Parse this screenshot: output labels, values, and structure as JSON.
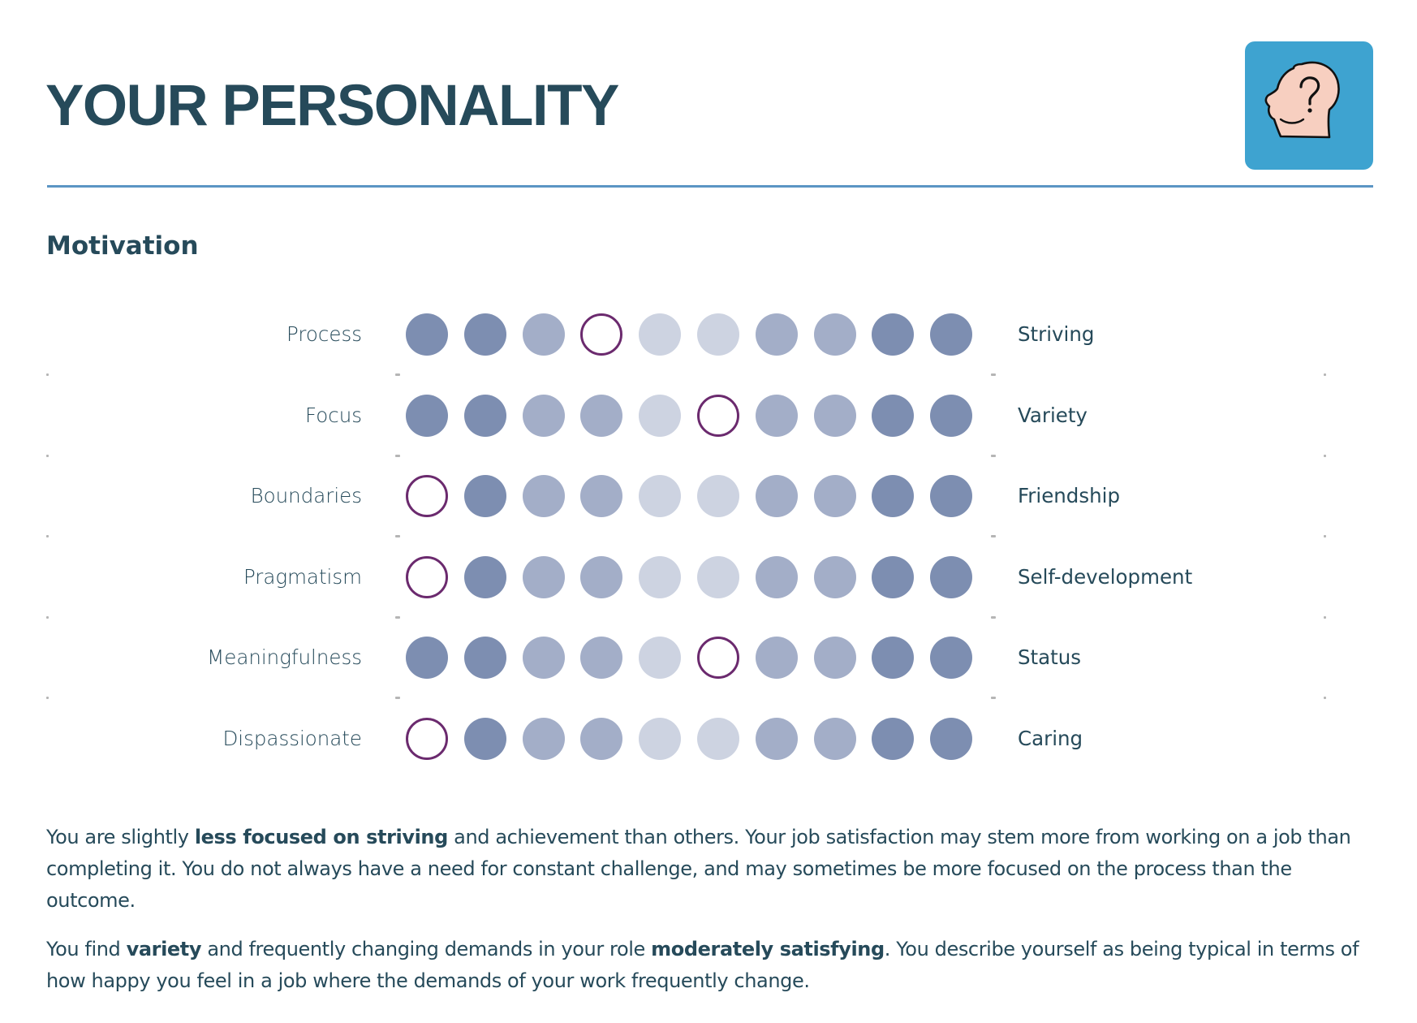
{
  "header": {
    "title": "YOUR PERSONALITY",
    "icon": "head-question-icon",
    "icon_bg": "#3ea3d0"
  },
  "section": {
    "title": "Motivation"
  },
  "scale": {
    "points": 10,
    "colors": {
      "dark": "#7d8eb1",
      "mid": "#a3aec8",
      "light": "#cdd3e1",
      "selected_ring": "#6b2a6e"
    },
    "dot_shades": [
      "dark",
      "dark",
      "mid",
      "mid",
      "light",
      "light",
      "mid",
      "mid",
      "dark",
      "dark"
    ],
    "rows": [
      {
        "left": "Process",
        "right": "Striving",
        "selected": 4
      },
      {
        "left": "Focus",
        "right": "Variety",
        "selected": 6
      },
      {
        "left": "Boundaries",
        "right": "Friendship",
        "selected": 1
      },
      {
        "left": "Pragmatism",
        "right": "Self-development",
        "selected": 1
      },
      {
        "left": "Meaningfulness",
        "right": "Status",
        "selected": 6
      },
      {
        "left": "Dispassionate",
        "right": "Caring",
        "selected": 1
      }
    ]
  },
  "paragraphs": [
    {
      "parts": [
        {
          "text": "You are slightly ",
          "bold": false
        },
        {
          "text": "less focused on striving",
          "bold": true
        },
        {
          "text": " and achievement than others. Your job satisfaction may stem more from working on a job than completing it. You do not always have a need for constant challenge, and may sometimes be more focused on the process than the outcome.",
          "bold": false
        }
      ]
    },
    {
      "parts": [
        {
          "text": "You find ",
          "bold": false
        },
        {
          "text": "variety",
          "bold": true
        },
        {
          "text": " and frequently changing demands in your role ",
          "bold": false
        },
        {
          "text": "moderately satisfying",
          "bold": true
        },
        {
          "text": ". You describe yourself as being typical in terms of how happy you feel in a job where the demands of your work frequently change.",
          "bold": false
        }
      ]
    }
  ]
}
